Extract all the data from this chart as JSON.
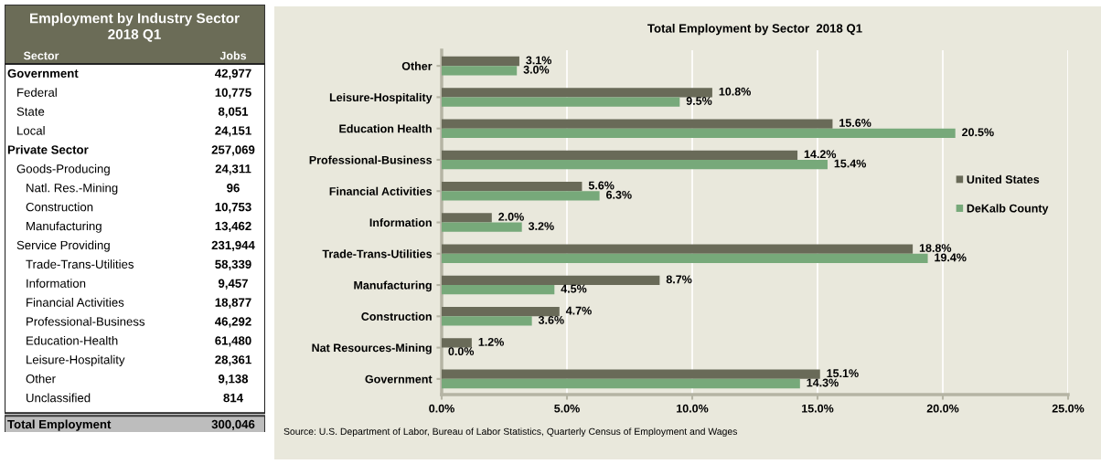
{
  "chart_data": [
    {
      "type": "other",
      "title": "Employment by Industry Sector\n2018 Q1",
      "xlabel": "Sector",
      "ylabel": "Jobs",
      "categories": [
        "Government",
        "  Federal",
        "  State",
        "  Local",
        "Private Sector",
        "  Goods-Producing",
        "    Natl. Res.-Mining",
        "    Construction",
        "    Manufacturing",
        "  Service Providing",
        "    Trade-Trans-Utilities",
        "    Information",
        "    Financial Activities",
        "    Professional-Business",
        "    Education-Health",
        "    Leisure-Hospitality",
        "    Other",
        "    Unclassified",
        "Total Employment"
      ],
      "value_labels": [
        "42,977",
        "10,775",
        "8,051",
        "24,151",
        "257,069",
        "24,311",
        "96",
        "10,753",
        "13,462",
        "231,944",
        "58,339",
        "9,457",
        "18,877",
        "46,292",
        "61,480",
        "28,361",
        "9,138",
        "814",
        "300,046"
      ]
    },
    {
      "type": "bar",
      "orientation": "horizontal",
      "title": "Total Employment by Sector  2018 Q1",
      "categories": [
        "Other",
        "Leisure-Hospitality",
        "Education Health",
        "Professional-Business",
        "Financial Activities",
        "Information",
        "Trade-Trans-Utilities",
        "Manufacturing",
        "Construction",
        "Nat Resources-Mining",
        "Government"
      ],
      "series": [
        {
          "name": "United States",
          "color": "#696a58",
          "values": [
            3.1,
            10.8,
            15.6,
            14.2,
            5.6,
            2.0,
            18.8,
            8.7,
            4.7,
            1.2,
            15.1
          ],
          "value_labels": [
            "3.1%",
            "10.8%",
            "15.6%",
            "14.2%",
            "5.6%",
            "2.0%",
            "18.8%",
            "8.7%",
            "4.7%",
            "1.2%",
            "15.1%"
          ]
        },
        {
          "name": "DeKalb County",
          "color": "#77a97a",
          "values": [
            3.0,
            9.5,
            20.5,
            15.4,
            6.3,
            3.2,
            19.4,
            4.5,
            3.6,
            0.0,
            14.3
          ],
          "value_labels": [
            "3.0%",
            "9.5%",
            "20.5%",
            "15.4%",
            "6.3%",
            "3.2%",
            "19.4%",
            "4.5%",
            "3.6%",
            "0.0%",
            "14.3%"
          ]
        }
      ],
      "xlim": [
        0,
        25
      ],
      "xticks": [
        {
          "value": 0,
          "label": "0.0%"
        },
        {
          "value": 5,
          "label": "5.0%"
        },
        {
          "value": 10,
          "label": "10.0%"
        },
        {
          "value": 15,
          "label": "15.0%"
        },
        {
          "value": 20,
          "label": "20.0%"
        },
        {
          "value": 25,
          "label": "25.0%"
        }
      ],
      "grid": "x",
      "legend": "right",
      "annotations": [
        "Source: U.S. Department of Labor, Bureau of Labor Statistics, Quarterly Census of Employment and Wages"
      ]
    }
  ]
}
